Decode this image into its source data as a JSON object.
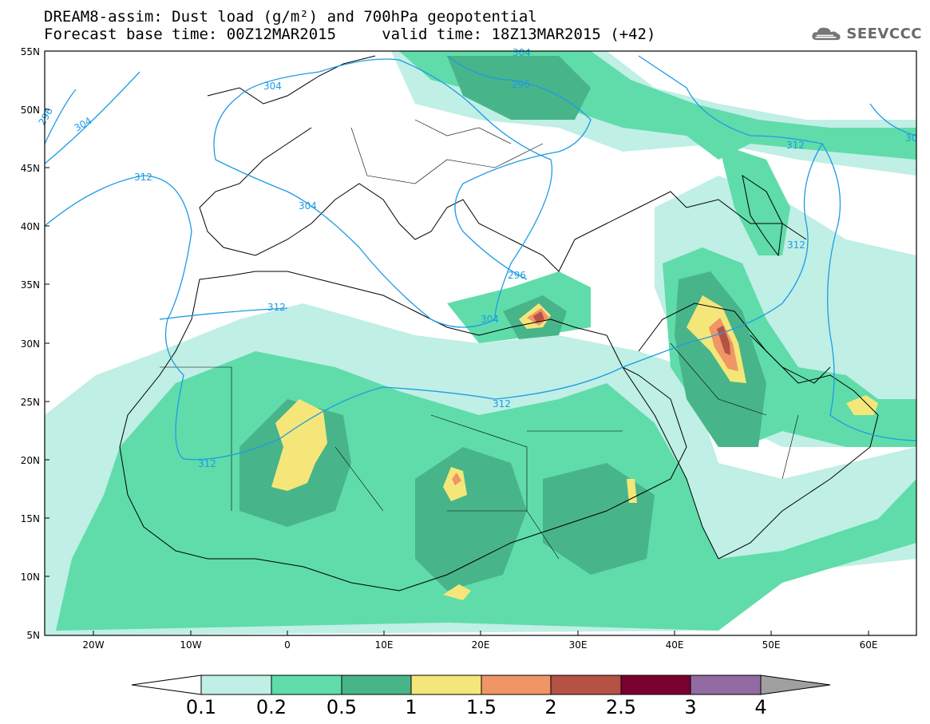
{
  "title": {
    "line1": "DREAM8-assim: Dust load (g/m²) and 700hPa geopotential",
    "line2": "Forecast base time: 00Z12MAR2015     valid time: 18Z13MAR2015 (+42)"
  },
  "logo": {
    "text": "SEEVCCC",
    "icon": "cloud-icon"
  },
  "map": {
    "lat_labels": [
      "55N",
      "50N",
      "45N",
      "40N",
      "35N",
      "30N",
      "25N",
      "20N",
      "15N",
      "10N",
      "5N"
    ],
    "lon_labels": [
      "20W",
      "10W",
      "0",
      "10E",
      "20E",
      "30E",
      "40E",
      "50E",
      "60E"
    ],
    "contour_labels": [
      "296",
      "304",
      "312",
      "304",
      "296",
      "304",
      "312",
      "296",
      "312",
      "304",
      "312",
      "312",
      "304",
      "312",
      "30"
    ]
  },
  "colorbar": {
    "labels": [
      "0.1",
      "0.2",
      "0.5",
      "1",
      "1.5",
      "2",
      "2.5",
      "3",
      "4"
    ],
    "colors": [
      "#ffffff",
      "#bfefe5",
      "#5fdcaa",
      "#48b48a",
      "#f5e67a",
      "#ef9566",
      "#b55145",
      "#7a0030",
      "#916ba2",
      "#a0a0a0"
    ]
  },
  "colors": {
    "dust_01": "#bfefe5",
    "dust_02": "#5fdcaa",
    "dust_05": "#48b48a",
    "dust_1": "#f5e67a",
    "dust_15": "#ef9566",
    "dust_2": "#b55145",
    "contour": "#1e9be6"
  }
}
